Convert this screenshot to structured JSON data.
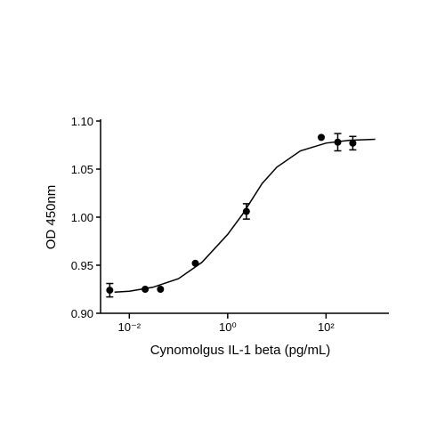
{
  "chart_data": {
    "type": "scatter",
    "x_label": "Cynomolgus IL-1 beta (pg/mL)",
    "y_label": "OD 450nm",
    "xscale": "log",
    "xlim": [
      0.0026,
      1900
    ],
    "ylim": [
      0.9,
      1.1
    ],
    "xticks": [
      {
        "value": 0.01,
        "label": "10⁻²"
      },
      {
        "value": 1,
        "label": "10⁰"
      },
      {
        "value": 100,
        "label": "10²"
      }
    ],
    "yticks": [
      {
        "value": 0.9,
        "label": "0.90"
      },
      {
        "value": 0.95,
        "label": "0.95"
      },
      {
        "value": 1,
        "label": "1.00"
      },
      {
        "value": 1.05,
        "label": "1.05"
      },
      {
        "value": 1.1,
        "label": "1.10"
      }
    ],
    "series": [
      {
        "type": "scatter",
        "color": "#000000",
        "x": [
          0.004,
          0.021,
          0.043,
          0.22,
          2.4,
          80,
          173,
          350
        ],
        "values": [
          0.924,
          0.925,
          0.925,
          0.952,
          1.006,
          1.083,
          1.078,
          1.077
        ],
        "errors": [
          0.007,
          null,
          null,
          null,
          0.008,
          null,
          0.009,
          0.007
        ]
      },
      {
        "type": "line",
        "color": "#000000",
        "x": [
          0.005,
          0.01,
          0.03,
          0.1,
          0.3,
          1,
          2,
          5,
          10,
          30,
          100,
          300,
          1000
        ],
        "values": [
          0.922,
          0.923,
          0.927,
          0.936,
          0.953,
          0.982,
          1.003,
          1.035,
          1.052,
          1.069,
          1.077,
          1.08,
          1.081
        ]
      }
    ]
  }
}
